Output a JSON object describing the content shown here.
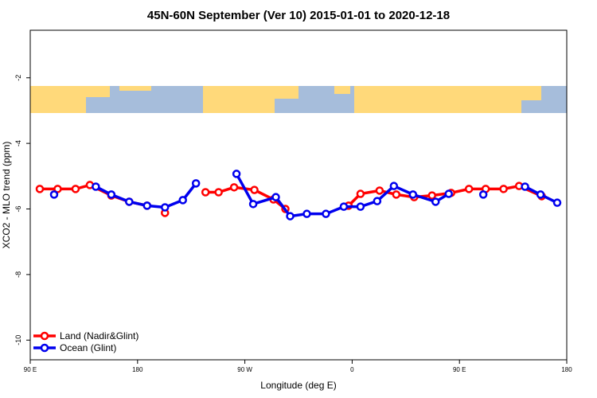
{
  "chart_data": {
    "type": "line",
    "title": "45N-60N September (Ver 10)   2015-01-01 to 2020-12-18",
    "x_label": "Longitude (deg E)",
    "y_label": "XCO2 - MLO trend (ppm)",
    "xlim": [
      90,
      540
    ],
    "xticks": [
      {
        "value": 90,
        "label": "90 E"
      },
      {
        "value": 180,
        "label": "180"
      },
      {
        "value": 270,
        "label": "90 W"
      },
      {
        "value": 360,
        "label": "0"
      },
      {
        "value": 450,
        "label": "90 E"
      },
      {
        "value": 540,
        "label": "180"
      }
    ],
    "ylim": [
      -10.6,
      -0.55
    ],
    "yticks": [
      -2,
      -4,
      -6,
      -8,
      -10
    ],
    "legend": "bottom-left",
    "series": [
      {
        "name": "Land (Nadir&Glint)",
        "color": "#ff0000",
        "x": [
          98,
          113,
          128,
          140,
          158,
          173,
          188,
          null,
          203,
          null,
          237,
          248,
          261,
          278,
          294,
          304,
          null,
          357,
          367,
          383,
          397,
          412,
          427,
          443,
          458,
          472,
          487,
          500,
          519
        ],
        "values": [
          -5.39,
          -5.39,
          -5.39,
          -5.27,
          -5.59,
          -5.78,
          -5.9,
          null,
          -6.12,
          null,
          -5.49,
          -5.49,
          -5.34,
          -5.42,
          -5.71,
          -6.0,
          null,
          -5.9,
          -5.54,
          -5.44,
          -5.56,
          -5.64,
          -5.59,
          -5.51,
          -5.39,
          -5.39,
          -5.39,
          -5.3,
          -5.61
        ]
      },
      {
        "name": "Ocean (Glint)",
        "color": "#0000ee",
        "x": [
          110,
          null,
          145,
          158,
          173,
          188,
          203,
          218,
          229,
          null,
          263,
          277,
          296,
          308,
          322,
          338,
          353,
          367,
          381,
          395,
          411,
          430,
          441,
          null,
          470,
          null,
          505,
          518,
          532
        ],
        "values": [
          -5.56,
          null,
          -5.32,
          -5.56,
          -5.78,
          -5.9,
          -5.95,
          -5.73,
          -5.22,
          null,
          -4.93,
          -5.85,
          -5.64,
          -6.22,
          -6.15,
          -6.15,
          -5.93,
          -5.93,
          -5.76,
          -5.3,
          -5.56,
          -5.78,
          -5.54,
          null,
          -5.56,
          null,
          -5.32,
          -5.56,
          -5.81
        ]
      }
    ]
  }
}
